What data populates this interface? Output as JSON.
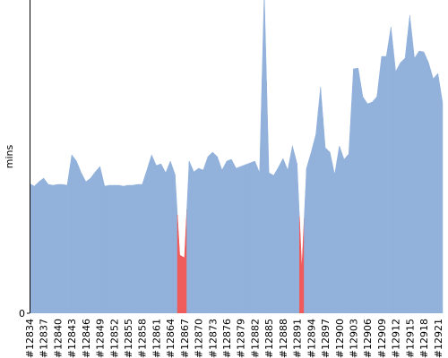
{
  "chart_data": {
    "type": "area",
    "y_label": "mins",
    "categories": [
      "#12834",
      null,
      null,
      "#12837",
      null,
      null,
      "#12840",
      null,
      null,
      "#12843",
      null,
      null,
      "#12846",
      null,
      null,
      "#12849",
      null,
      null,
      "#12852",
      null,
      null,
      "#12855",
      null,
      null,
      "#12858",
      null,
      null,
      "#12861",
      null,
      null,
      "#12864",
      null,
      null,
      "#12867",
      null,
      null,
      "#12870",
      null,
      null,
      "#12873",
      null,
      null,
      "#12876",
      null,
      null,
      "#12879",
      null,
      null,
      "#12882",
      null,
      null,
      "#12885",
      null,
      null,
      "#12888",
      null,
      null,
      "#12891",
      null,
      null,
      "#12894",
      null,
      null,
      "#12897",
      null,
      null,
      "#12900",
      null,
      null,
      "#12903",
      null,
      null,
      "#12906",
      null,
      null,
      "#12909",
      null,
      null,
      "#12912",
      null,
      null,
      "#12915",
      null,
      null,
      "#12918",
      null,
      null,
      "#12921",
      null
    ],
    "values": [
      14.5,
      14.2,
      14.7,
      15.1,
      14.4,
      14.3,
      14.4,
      14.4,
      14.3,
      17.7,
      17,
      15.7,
      14.7,
      15.1,
      15.8,
      16.4,
      14.2,
      14.3,
      14.3,
      14.3,
      14.2,
      14.3,
      14.3,
      14.4,
      14.4,
      16,
      17.7,
      16.5,
      16.7,
      15.7,
      17,
      15.5,
      6.5,
      6.2,
      17,
      15.8,
      16.2,
      16,
      17.5,
      18,
      17.5,
      16,
      17,
      17.2,
      16.2,
      16.4,
      16.6,
      16.8,
      17,
      15.7,
      36,
      15.7,
      15.4,
      16.3,
      17.3,
      16,
      18.7,
      16.7,
      5,
      16.2,
      18,
      20,
      25.3,
      18.5,
      18,
      15.5,
      18.7,
      17.2,
      17.8,
      27.3,
      27.4,
      24.2,
      23.4,
      23.6,
      24.2,
      28.7,
      28.7,
      32,
      27,
      28,
      28.5,
      33.3,
      28.5,
      29.3,
      29.2,
      28,
      26.2,
      26.8,
      23.5
    ],
    "colors": [
      "#92b1db",
      "#92b1db",
      "#92b1db",
      "#92b1db",
      "#92b1db",
      "#92b1db",
      "#92b1db",
      "#92b1db",
      "#92b1db",
      "#92b1db",
      "#92b1db",
      "#92b1db",
      "#92b1db",
      "#92b1db",
      "#92b1db",
      "#92b1db",
      "#92b1db",
      "#92b1db",
      "#92b1db",
      "#92b1db",
      "#92b1db",
      "#92b1db",
      "#92b1db",
      "#92b1db",
      "#92b1db",
      "#92b1db",
      "#92b1db",
      "#92b1db",
      "#92b1db",
      "#92b1db",
      "#92b1db",
      "#92b1db",
      "#ef5b5b",
      "#ef5b5b",
      "#92b1db",
      "#92b1db",
      "#92b1db",
      "#92b1db",
      "#92b1db",
      "#92b1db",
      "#92b1db",
      "#92b1db",
      "#92b1db",
      "#92b1db",
      "#92b1db",
      "#92b1db",
      "#92b1db",
      "#92b1db",
      "#92b1db",
      "#92b1db",
      "#92b1db",
      "#92b1db",
      "#92b1db",
      "#92b1db",
      "#92b1db",
      "#92b1db",
      "#92b1db",
      "#92b1db",
      "#ef5b5b",
      "#92b1db",
      "#92b1db",
      "#92b1db",
      "#92b1db",
      "#92b1db",
      "#92b1db",
      "#92b1db",
      "#92b1db",
      "#92b1db",
      "#92b1db",
      "#92b1db",
      "#92b1db",
      "#92b1db",
      "#92b1db",
      "#92b1db",
      "#92b1db",
      "#92b1db",
      "#92b1db",
      "#92b1db",
      "#92b1db",
      "#92b1db",
      "#92b1db",
      "#92b1db",
      "#92b1db",
      "#92b1db",
      "#92b1db",
      "#92b1db",
      "#92b1db",
      "#92b1db",
      "#92b1db"
    ],
    "ylim": [
      0,
      35
    ],
    "yticks": [
      0
    ]
  }
}
